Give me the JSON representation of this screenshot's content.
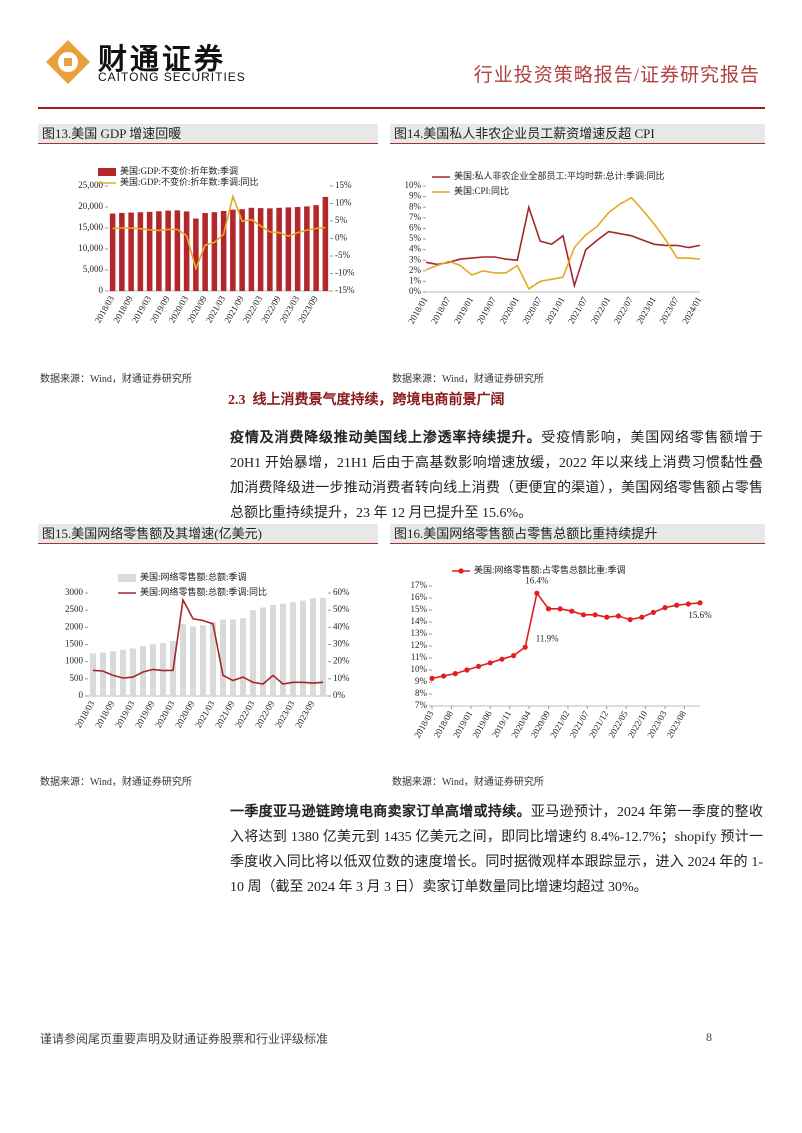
{
  "header": {
    "logo_cn": "财通证券",
    "logo_en": "CAITONG SECURITIES",
    "report_type": "行业投资策略报告/证券研究报告"
  },
  "section": {
    "number": "2.3",
    "title": "线上消费景气度持续，跨境电商前景广阔"
  },
  "paragraphs": [
    {
      "lead": "疫情及消费降级推动美国线上渗透率持续提升。",
      "body": "受疫情影响，美国网络零售额增于 20H1 开始暴增，21H1 后由于高基数影响增速放缓，2022 年以来线上消费习惯黏性叠加消费降级进一步推动消费者转向线上消费（更便宜的渠道），美国网络零售额占零售总额比重持续提升，23 年 12 月已提升至 15.6%。"
    },
    {
      "lead": "一季度亚马逊链跨境电商卖家订单高增或持续。",
      "body": "亚马逊预计，2024 年第一季度的整收入将达到 1380 亿美元到 1435 亿美元之间，即同比增速约 8.4%-12.7%；shopify 预计一季度收入同比将以低双位数的速度增长。同时据微观样本跟踪显示，进入 2024 年的 1-10 周（截至 2024 年 3 月 3 日）卖家订单数量同比增速均超过 30%。"
    }
  ],
  "footer": {
    "disclaimer": "谨请参阅尾页重要声明及财通证券股票和行业评级标准",
    "page": 8
  },
  "chart_data": [
    {
      "type": "combo",
      "title": "图13.美国 GDP 增速回暖",
      "source": "数据来源：Wind，财通证券研究所",
      "categories": [
        "2018/03",
        null,
        "2018/09",
        null,
        "2019/03",
        null,
        "2019/09",
        null,
        "2020/03",
        null,
        "2020/09",
        null,
        "2021/03",
        null,
        "2021/09",
        null,
        "2022/03",
        null,
        "2022/09",
        null,
        "2023/03",
        null,
        "2023/09",
        null
      ],
      "series": [
        {
          "name": "美国:GDP:不变价:折年数:季调",
          "type": "bar",
          "color": "#b3262c",
          "values": [
            18450,
            18590,
            18680,
            18750,
            18840,
            18980,
            19140,
            19200,
            18950,
            17260,
            18560,
            18770,
            19060,
            19370,
            19480,
            19810,
            19730,
            19680,
            19810,
            19900,
            20010,
            20140,
            20440,
            22400
          ]
        },
        {
          "name": "美国:GDP:不变价:折年数:季调:同比",
          "type": "line",
          "axis": "y2",
          "color": "#e5a823",
          "values": [
            2.9,
            3.0,
            3.0,
            2.8,
            2.5,
            2.3,
            2.6,
            2.6,
            0.8,
            -8.6,
            -1.9,
            -1.1,
            1.2,
            12.0,
            4.9,
            5.4,
            3.6,
            1.9,
            1.7,
            0.7,
            1.7,
            2.4,
            2.9,
            3.1
          ]
        }
      ],
      "ylim": [
        0,
        25000
      ],
      "yticks": [
        0,
        {
          "value": 5000,
          "label": "5,000"
        },
        {
          "value": 10000,
          "label": "10,000"
        },
        {
          "value": 15000,
          "label": "15,000"
        },
        {
          "value": 20000,
          "label": "20,000"
        },
        {
          "value": 25000,
          "label": "25,000"
        }
      ],
      "y2lim": [
        -15,
        15
      ],
      "y2ticks": [
        {
          "value": -15,
          "label": "-15%"
        },
        {
          "value": -10,
          "label": "-10%"
        },
        {
          "value": -5,
          "label": "-5%"
        },
        {
          "value": 0,
          "label": "0%"
        },
        {
          "value": 5,
          "label": "5%"
        },
        {
          "value": 10,
          "label": "10%"
        },
        {
          "value": 15,
          "label": "15%"
        }
      ]
    },
    {
      "type": "line",
      "title": "图14.美国私人非农企业员工薪资增速反超 CPI",
      "source": "数据来源：Wind，财通证券研究所",
      "categories": [
        "2018/01",
        null,
        "2018/07",
        null,
        "2019/01",
        null,
        "2019/07",
        null,
        "2020/01",
        null,
        "2020/07",
        null,
        "2021/01",
        null,
        "2021/07",
        null,
        "2022/01",
        null,
        "2022/07",
        null,
        "2023/01",
        null,
        "2023/07",
        null,
        "2024/01"
      ],
      "series": [
        {
          "name": "美国:私人非农企业全部员工:平均时薪:总计:季调:同比",
          "color": "#a3282c",
          "values": [
            2.8,
            2.6,
            2.8,
            3.1,
            3.2,
            3.3,
            3.3,
            3.1,
            3.0,
            8.0,
            4.8,
            4.5,
            5.3,
            0.6,
            4.0,
            4.9,
            5.7,
            5.5,
            5.3,
            4.9,
            4.5,
            4.4,
            4.4,
            4.2,
            4.4
          ]
        },
        {
          "name": "美国:CPI:同比",
          "color": "#e5a823",
          "values": [
            2.1,
            2.5,
            2.9,
            2.5,
            1.6,
            2.0,
            1.8,
            1.8,
            2.5,
            0.3,
            1.0,
            1.2,
            1.4,
            4.2,
            5.4,
            6.2,
            7.5,
            8.3,
            8.9,
            7.7,
            6.4,
            4.9,
            3.2,
            3.2,
            3.1
          ]
        }
      ],
      "ylim": [
        0,
        10
      ],
      "yticks": [
        {
          "value": 0,
          "label": "0%"
        },
        {
          "value": 1,
          "label": "1%"
        },
        {
          "value": 2,
          "label": "2%"
        },
        {
          "value": 3,
          "label": "3%"
        },
        {
          "value": 4,
          "label": "4%"
        },
        {
          "value": 5,
          "label": "5%"
        },
        {
          "value": 6,
          "label": "6%"
        },
        {
          "value": 7,
          "label": "7%"
        },
        {
          "value": 8,
          "label": "8%"
        },
        {
          "value": 9,
          "label": "9%"
        },
        {
          "value": 10,
          "label": "10%"
        }
      ]
    },
    {
      "type": "combo",
      "title": "图15.美国网络零售额及其增速(亿美元)",
      "source": "数据来源：Wind，财通证券研究所",
      "categories": [
        "2018/03",
        null,
        "2018/09",
        null,
        "2019/03",
        null,
        "2019/09",
        null,
        "2020/03",
        null,
        "2020/09",
        null,
        "2021/03",
        null,
        "2021/09",
        null,
        "2022/03",
        null,
        "2022/09",
        null,
        "2023/03",
        null,
        "2023/09",
        null
      ],
      "series": [
        {
          "name": "美国:网络零售额:总额:季调",
          "type": "bar",
          "color": "#dadada",
          "values": [
            1237,
            1270,
            1305,
            1345,
            1382,
            1448,
            1507,
            1545,
            1603,
            2095,
            2026,
            2062,
            2155,
            2225,
            2232,
            2270,
            2500,
            2575,
            2654,
            2690,
            2726,
            2779,
            2846,
            2856
          ]
        },
        {
          "name": "美国:网络零售额:总额:季调:同比",
          "type": "line",
          "axis": "y2",
          "color": "#a3282c",
          "values": [
            15,
            14.5,
            12,
            10.5,
            11,
            14,
            15.5,
            14.8,
            15,
            56,
            45,
            44,
            42,
            12,
            9,
            11,
            8,
            7,
            12,
            7,
            8,
            8,
            7.5,
            8
          ]
        }
      ],
      "ylim": [
        0,
        3000
      ],
      "yticks": [
        0,
        500,
        1000,
        1500,
        2000,
        2500,
        3000
      ],
      "y2lim": [
        0,
        60
      ],
      "y2ticks": [
        {
          "value": 0,
          "label": "0%"
        },
        {
          "value": 10,
          "label": "10%"
        },
        {
          "value": 20,
          "label": "20%"
        },
        {
          "value": 30,
          "label": "30%"
        },
        {
          "value": 40,
          "label": "40%"
        },
        {
          "value": 50,
          "label": "50%"
        },
        {
          "value": 60,
          "label": "60%"
        }
      ]
    },
    {
      "type": "line",
      "title": "图16.美国网络零售额占零售总额比重持续提升",
      "source": "数据来源：Wind，财通证券研究所",
      "markers": true,
      "x": [
        0,
        1,
        2,
        3,
        4,
        5,
        6,
        7,
        8,
        9,
        10,
        11,
        12,
        13,
        14,
        15,
        16,
        17,
        18,
        19,
        20,
        21,
        22,
        23
      ],
      "xlim": [
        0,
        23
      ],
      "xticks": [
        {
          "value": 0,
          "label": "2018/03"
        },
        {
          "value": 1.667,
          "label": "2018/08"
        },
        {
          "value": 3.333,
          "label": "2019/01"
        },
        {
          "value": 5,
          "label": "2019/06"
        },
        {
          "value": 6.667,
          "label": "2019/11"
        },
        {
          "value": 8.333,
          "label": "2020/04"
        },
        {
          "value": 10,
          "label": "2020/09"
        },
        {
          "value": 11.667,
          "label": "2021/02"
        },
        {
          "value": 13.333,
          "label": "2021/07"
        },
        {
          "value": 15,
          "label": "2021/12"
        },
        {
          "value": 16.667,
          "label": "2022/05"
        },
        {
          "value": 18.333,
          "label": "2022/10"
        },
        {
          "value": 20,
          "label": "2023/03"
        },
        {
          "value": 21.667,
          "label": "2023/08"
        }
      ],
      "series": [
        {
          "name": "美国:网络零售额:占零售总额比重:季调",
          "color": "#e02020",
          "values": [
            9.3,
            9.5,
            9.7,
            10.0,
            10.3,
            10.6,
            10.9,
            11.2,
            11.9,
            16.4,
            15.1,
            15.1,
            14.9,
            14.6,
            14.6,
            14.4,
            14.5,
            14.2,
            14.4,
            14.8,
            15.2,
            15.4,
            15.5,
            15.6
          ],
          "value_labels": [
            null,
            null,
            null,
            null,
            null,
            null,
            null,
            null,
            "11.9%",
            "16.4%",
            null,
            null,
            null,
            null,
            null,
            null,
            null,
            null,
            null,
            null,
            null,
            null,
            null,
            "15.6%"
          ]
        }
      ],
      "ylim": [
        7,
        17
      ],
      "yticks": [
        {
          "value": 7,
          "label": "7%"
        },
        {
          "value": 8,
          "label": "8%"
        },
        {
          "value": 9,
          "label": "9%"
        },
        {
          "value": 10,
          "label": "10%"
        },
        {
          "value": 11,
          "label": "11%"
        },
        {
          "value": 12,
          "label": "12%"
        },
        {
          "value": 13,
          "label": "13%"
        },
        {
          "value": 14,
          "label": "14%"
        },
        {
          "value": 15,
          "label": "15%"
        },
        {
          "value": 16,
          "label": "16%"
        },
        {
          "value": 17,
          "label": "17%"
        }
      ]
    }
  ]
}
